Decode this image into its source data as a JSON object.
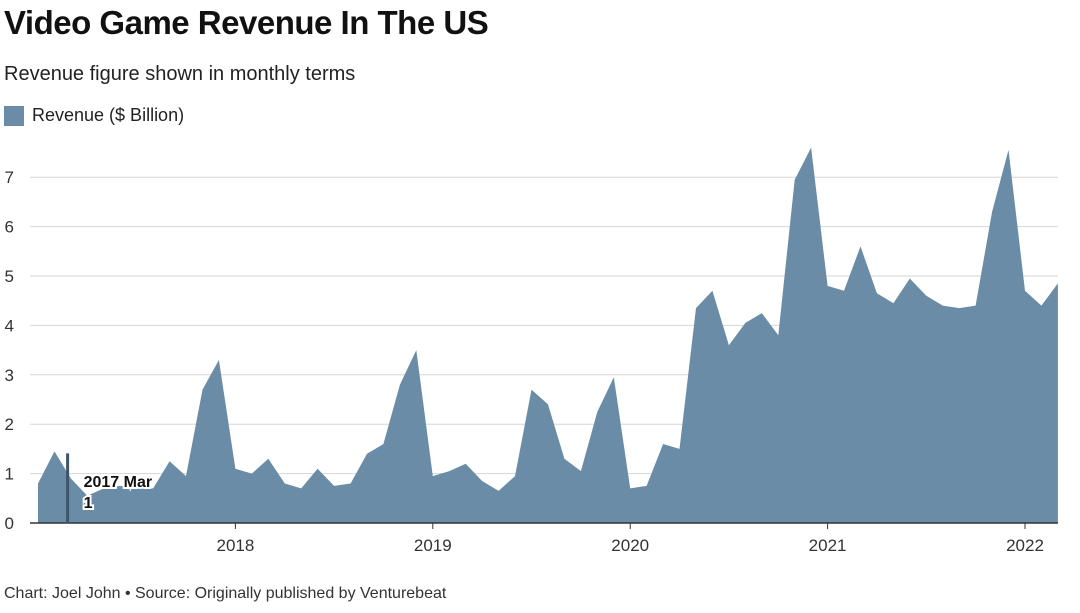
{
  "header": {
    "title": "Video Game Revenue In The US",
    "subtitle": "Revenue figure shown in monthly terms"
  },
  "footer": {
    "credit": "Chart: Joel John • Source: Originally published by Venturebeat"
  },
  "colors": {
    "area": "#6a8ca6",
    "grid": "#d6d6d6",
    "axis": "#333333",
    "marker": "#3d5568"
  },
  "tooltip": {
    "date": "2017 Mar",
    "value": "1"
  },
  "chart_data": {
    "type": "area",
    "title": "Video Game Revenue In The US",
    "subtitle": "Revenue figure shown in monthly terms",
    "xlabel": "",
    "ylabel": "",
    "legend": "top-left",
    "grid": true,
    "ylim": [
      0,
      7.5
    ],
    "yticks": [
      0,
      1,
      2,
      3,
      4,
      5,
      6,
      7
    ],
    "x_start": "2017-01",
    "xtick_labels": [
      {
        "label": "2018",
        "index": 12
      },
      {
        "label": "2019",
        "index": 24
      },
      {
        "label": "2020",
        "index": 36
      },
      {
        "label": "2021",
        "index": 48
      },
      {
        "label": "2022",
        "index": 60
      }
    ],
    "series": [
      {
        "name": "Revenue ($ Billion)",
        "values": [
          0.8,
          1.45,
          0.9,
          0.55,
          0.7,
          0.75,
          0.7,
          0.7,
          1.25,
          0.95,
          2.7,
          3.3,
          1.1,
          1.0,
          1.3,
          0.8,
          0.7,
          1.1,
          0.75,
          0.8,
          1.4,
          1.6,
          2.8,
          3.5,
          0.95,
          1.05,
          1.2,
          0.85,
          0.65,
          0.95,
          2.7,
          2.4,
          1.3,
          1.05,
          2.25,
          2.95,
          0.7,
          0.75,
          1.6,
          1.5,
          4.35,
          4.7,
          3.6,
          4.05,
          4.25,
          3.8,
          6.95,
          7.6,
          4.8,
          4.7,
          5.6,
          4.65,
          4.45,
          4.95,
          4.6,
          4.4,
          4.35,
          4.4,
          6.3,
          7.55,
          4.7,
          4.4,
          4.85
        ]
      }
    ],
    "highlight_index": 2
  }
}
